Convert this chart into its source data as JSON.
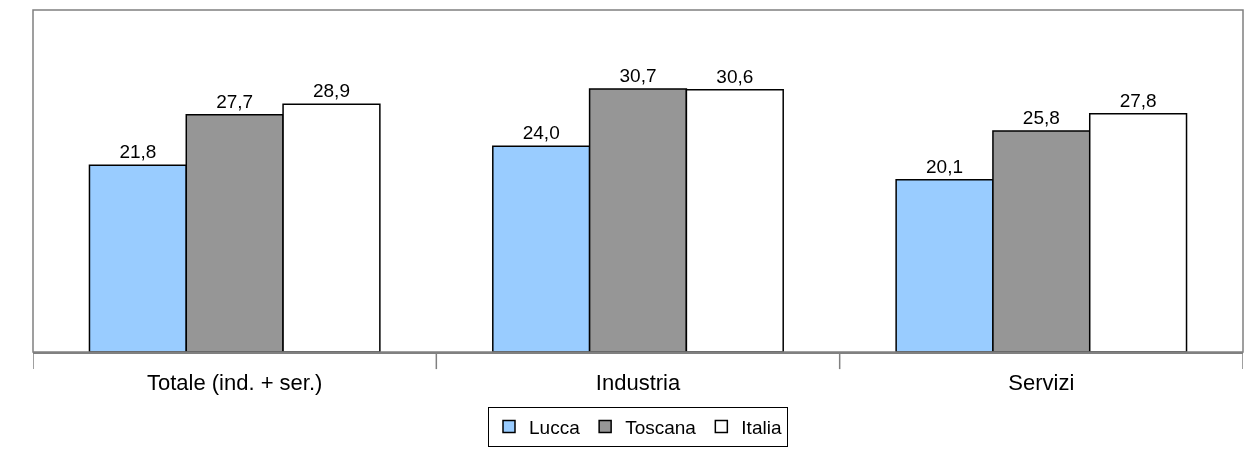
{
  "chart_data": {
    "type": "bar",
    "categories": [
      "Totale (ind. + ser.)",
      "Industria",
      "Servizi"
    ],
    "series": [
      {
        "name": "Lucca",
        "color": "#99ccff",
        "values": [
          21.8,
          24.0,
          20.1
        ],
        "value_labels": [
          "21,8",
          "24,0",
          "20,1"
        ]
      },
      {
        "name": "Toscana",
        "color": "#969696",
        "values": [
          27.7,
          30.7,
          25.8
        ],
        "value_labels": [
          "27,7",
          "30,7",
          "25,8"
        ]
      },
      {
        "name": "Italia",
        "color": "#ffffff",
        "values": [
          28.9,
          30.6,
          27.8
        ],
        "value_labels": [
          "28,9",
          "30,6",
          "27,8"
        ]
      }
    ],
    "tick_labels": "x",
    "legend": "bottom"
  }
}
